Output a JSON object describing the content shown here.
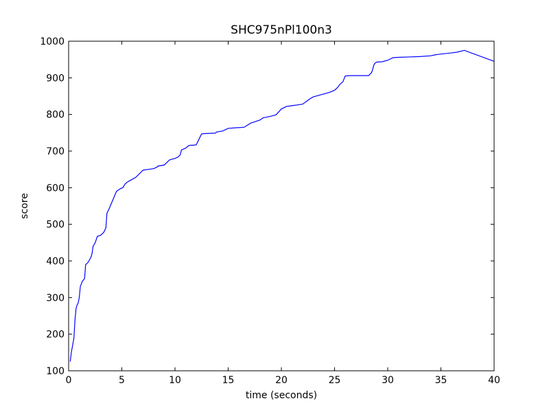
{
  "chart_data": {
    "type": "line",
    "title": "SHC975nPl100n3",
    "xlabel": "time (seconds)",
    "ylabel": "score",
    "xlim": [
      0,
      40
    ],
    "ylim": [
      100,
      1000
    ],
    "xticks": [
      0,
      5,
      10,
      15,
      20,
      25,
      30,
      35,
      40
    ],
    "yticks": [
      100,
      200,
      300,
      400,
      500,
      600,
      700,
      800,
      900,
      1000
    ],
    "grid": false,
    "line_color": "#0000ff",
    "series": [
      {
        "x": [
          0.15,
          0.25,
          0.35,
          0.5,
          0.6,
          0.7,
          0.8,
          0.9,
          1.0,
          1.1,
          1.3,
          1.45,
          1.5,
          1.6,
          1.8,
          1.9,
          2.1,
          2.2,
          2.3,
          2.5,
          2.7,
          3.0,
          3.3,
          3.5,
          3.6,
          3.8,
          4.5,
          4.6,
          4.7,
          4.8,
          4.9,
          5.1,
          5.3,
          5.5,
          5.8,
          6.3,
          7.0,
          7.5,
          8.0,
          8.3,
          8.4,
          9.0,
          9.1,
          9.5,
          10.0,
          10.3,
          10.5,
          10.6,
          11.0,
          11.3,
          11.5,
          11.7,
          12.0,
          12.5,
          13.0,
          13.8,
          13.9,
          14.5,
          15.0,
          15.9,
          16.0,
          16.5,
          17.1,
          17.5,
          18.0,
          18.3,
          18.5,
          19.0,
          19.5,
          20.0,
          20.5,
          21.0,
          21.5,
          22.0,
          22.7,
          23.0,
          23.5,
          24.0,
          24.5,
          25.0,
          25.3,
          25.5,
          25.8,
          26.0,
          26.5,
          27.0,
          28.2,
          28.5,
          28.7,
          28.8,
          29.0,
          29.5,
          30.0,
          30.5,
          31.0,
          32.0,
          33.0,
          34.0,
          34.5,
          35.0,
          36.0,
          36.5,
          37.2,
          40.0
        ],
        "y": [
          125,
          150,
          165,
          190,
          240,
          270,
          280,
          285,
          300,
          330,
          345,
          350,
          352,
          390,
          395,
          400,
          410,
          420,
          440,
          450,
          467,
          470,
          478,
          490,
          530,
          542,
          590,
          592,
          594,
          596,
          598,
          600,
          610,
          615,
          620,
          628,
          648,
          650,
          652,
          656,
          659,
          662,
          665,
          676,
          680,
          684,
          690,
          703,
          708,
          715,
          716,
          716,
          717,
          747,
          748,
          749,
          752,
          755,
          762,
          764,
          764,
          765,
          776,
          780,
          785,
          791,
          792,
          795,
          799,
          815,
          822,
          824,
          826,
          828,
          843,
          848,
          852,
          856,
          860,
          866,
          874,
          882,
          890,
          905,
          906,
          906,
          906,
          915,
          935,
          940,
          943,
          944,
          948,
          955,
          956,
          957,
          958,
          960,
          963,
          965,
          968,
          970,
          975,
          945
        ]
      }
    ]
  }
}
